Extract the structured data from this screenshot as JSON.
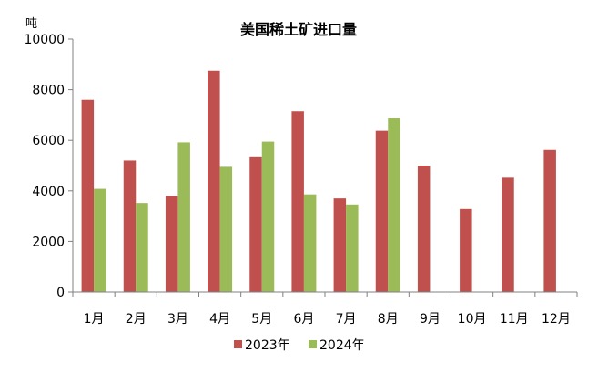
{
  "chart_data": {
    "type": "bar",
    "title": "美国稀土矿进口量",
    "ylabel": "吨",
    "xlabel": "",
    "ylim": [
      0,
      10000
    ],
    "yticks": [
      0,
      2000,
      4000,
      6000,
      8000,
      10000
    ],
    "grid": false,
    "legend_position": "bottom",
    "categories": [
      "1月",
      "2月",
      "3月",
      "4月",
      "5月",
      "6月",
      "7月",
      "8月",
      "9月",
      "10月",
      "11月",
      "12月"
    ],
    "series": [
      {
        "name": "2023年",
        "color": "#c0504d",
        "values": [
          7600,
          5200,
          3800,
          8750,
          5330,
          7150,
          3700,
          6380,
          5000,
          3280,
          4520,
          5620
        ]
      },
      {
        "name": "2024年",
        "color": "#9bbb59",
        "values": [
          4080,
          3520,
          5920,
          4950,
          5950,
          3860,
          3460,
          6870,
          null,
          null,
          null,
          null
        ]
      }
    ]
  }
}
